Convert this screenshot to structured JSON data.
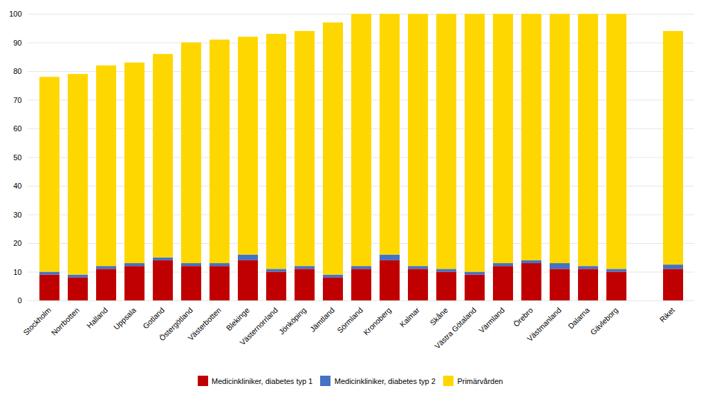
{
  "chart_data": {
    "type": "bar",
    "stacked": true,
    "categories": [
      "Stockholm",
      "Norrbotten",
      "Halland",
      "Uppsala",
      "Gotland",
      "Östergötland",
      "Västerbotten",
      "Blekinge",
      "Västernorrland",
      "Jönköping",
      "Jämtland",
      "Sörmland",
      "Kronoberg",
      "Kalmar",
      "Skåne",
      "Västra Götaland",
      "Värmland",
      "Örebro",
      "Västmanland",
      "Dalarna",
      "Gävleborg",
      null,
      "Riket"
    ],
    "series": [
      {
        "name": "Medicinkliniker, diabetes typ 1",
        "color": "#C00000",
        "values": [
          9,
          8,
          11,
          12,
          14,
          12,
          12,
          14,
          10,
          11,
          8,
          11,
          14,
          11,
          10,
          9,
          12,
          13,
          11,
          11,
          10,
          0,
          11
        ]
      },
      {
        "name": "Medicinkliniker, diabetes typ 2",
        "color": "#4472C4",
        "values": [
          1,
          1,
          1,
          1,
          1,
          1,
          1,
          2,
          1,
          1,
          1,
          1,
          2,
          1,
          1,
          1,
          1,
          1,
          2,
          1,
          1,
          0,
          1.5
        ]
      },
      {
        "name": "Primärvården",
        "color": "#FFD700",
        "values": [
          68,
          70,
          70,
          70,
          71,
          77,
          78,
          76,
          82,
          82,
          88,
          88,
          84,
          88,
          89,
          90,
          87,
          86,
          87,
          88,
          89,
          0,
          81.5
        ]
      }
    ],
    "ylim": [
      0,
      100
    ],
    "yticks": [
      0,
      10,
      20,
      30,
      40,
      50,
      60,
      70,
      80,
      90,
      100
    ],
    "grid": true,
    "legend": "bottom"
  }
}
